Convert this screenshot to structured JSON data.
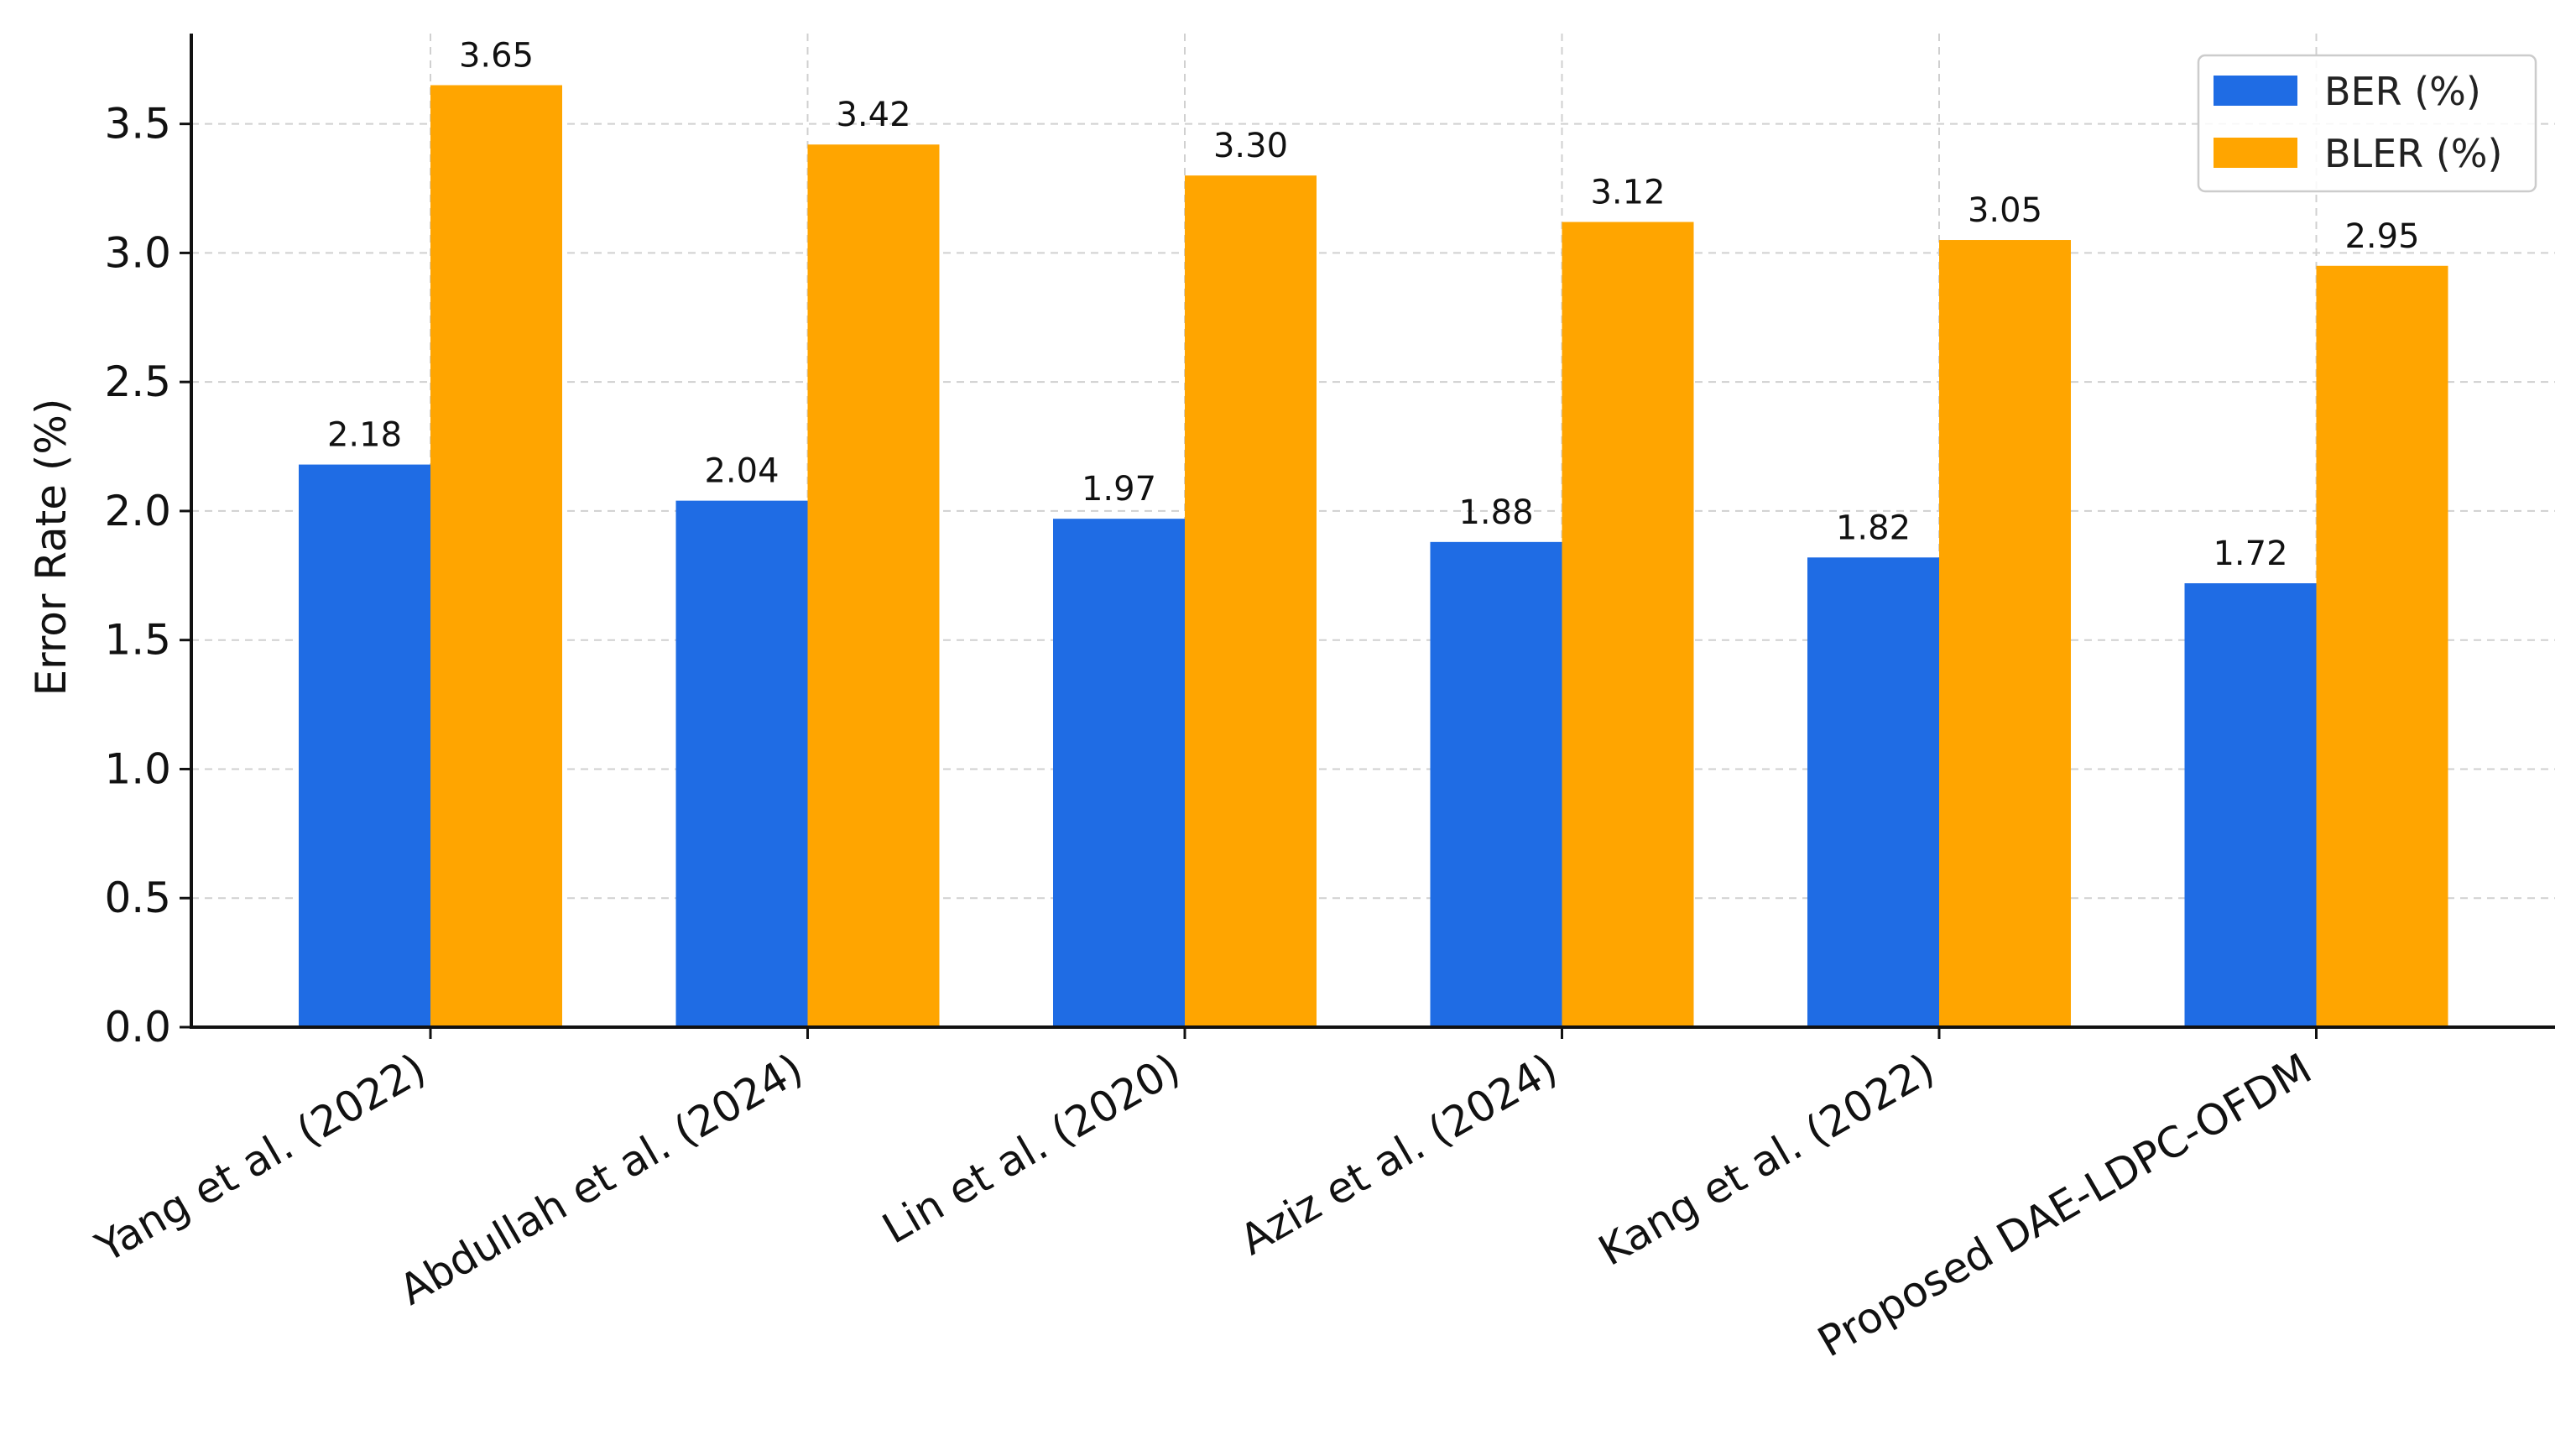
{
  "chart_data": {
    "type": "bar",
    "title": "",
    "xlabel": "",
    "ylabel": "Error Rate (%)",
    "ylim": [
      0,
      3.85
    ],
    "yticks": [
      0.0,
      0.5,
      1.0,
      1.5,
      2.0,
      2.5,
      3.0,
      3.5
    ],
    "ytick_labels": [
      "0.0",
      "0.5",
      "1.0",
      "1.5",
      "2.0",
      "2.5",
      "3.0",
      "3.5"
    ],
    "categories": [
      "Yang et al. (2022)",
      "Abdullah et al. (2024)",
      "Lin et al. (2020)",
      "Aziz et al. (2024)",
      "Kang et al. (2022)",
      "Proposed DAE-LDPC-OFDM"
    ],
    "series": [
      {
        "name": "BER (%)",
        "color": "#1f6ce4",
        "values": [
          2.18,
          2.04,
          1.97,
          1.88,
          1.82,
          1.72
        ],
        "labels": [
          "2.18",
          "2.04",
          "1.97",
          "1.88",
          "1.82",
          "1.72"
        ]
      },
      {
        "name": "BLER (%)",
        "color": "#ffa500",
        "values": [
          3.65,
          3.42,
          3.3,
          3.12,
          3.05,
          2.95
        ],
        "labels": [
          "3.65",
          "3.42",
          "3.30",
          "3.12",
          "3.05",
          "2.95"
        ]
      }
    ],
    "grid": true,
    "legend_position": "top-right"
  }
}
